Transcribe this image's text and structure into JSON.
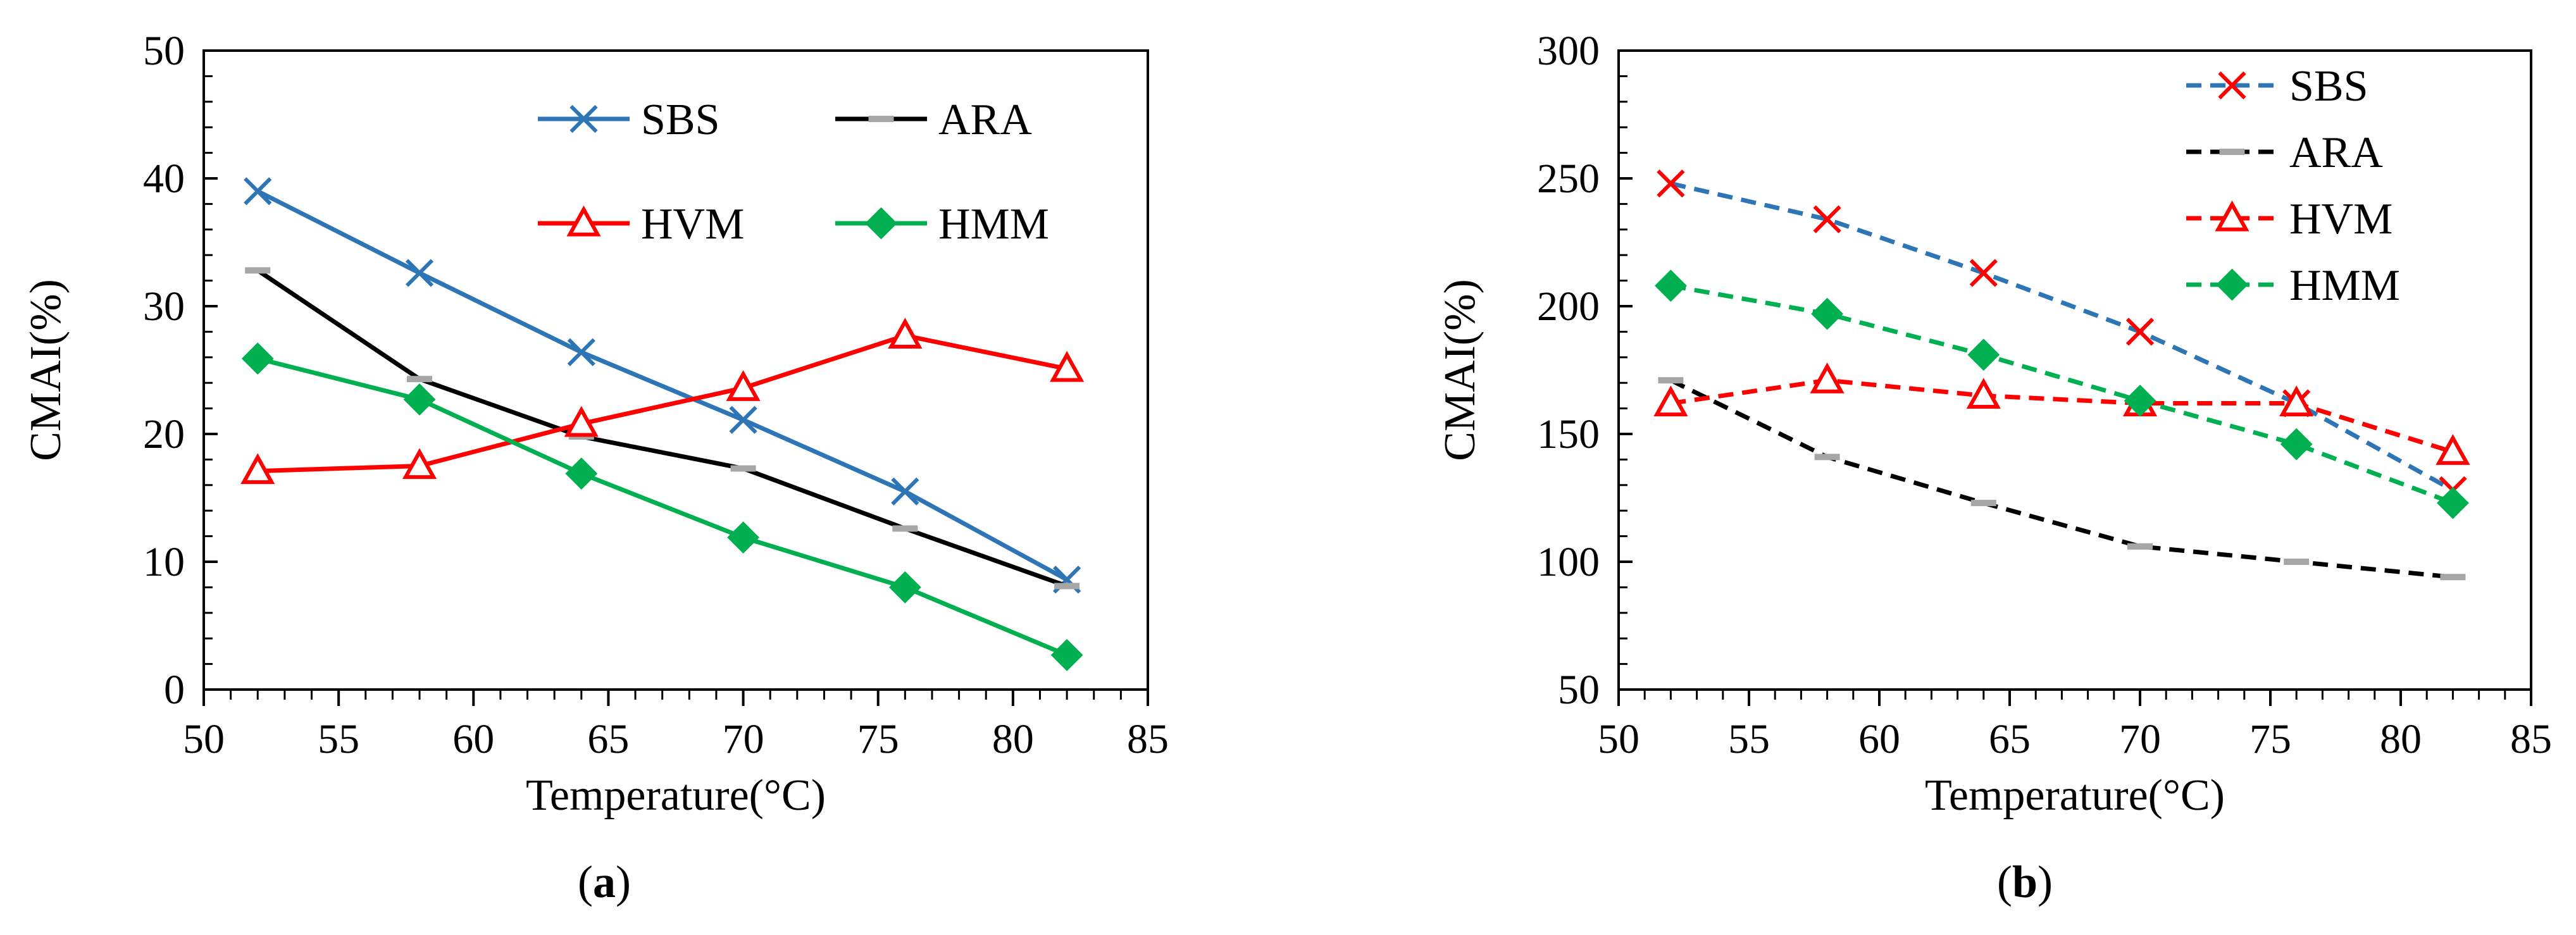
{
  "chart_data": [
    {
      "panel": "a",
      "caption_parts": [
        "(",
        "a",
        ")"
      ],
      "type": "line",
      "xlabel": "Temperature(°C)",
      "ylabel": "CMAI(%)",
      "xlim": [
        50,
        85
      ],
      "ylim": [
        0,
        50
      ],
      "xticks": [
        50,
        55,
        60,
        65,
        70,
        75,
        80,
        85
      ],
      "yticks": [
        0,
        10,
        20,
        30,
        40,
        50
      ],
      "legend_columns": 2,
      "x": [
        52,
        58,
        64,
        70,
        76,
        82
      ],
      "series": [
        {
          "name": "SBS",
          "values": [
            39,
            32.6,
            26.4,
            21.1,
            15.5,
            8.6
          ],
          "color": "#2e75b6",
          "marker": "x",
          "dashed": false
        },
        {
          "name": "ARA",
          "values": [
            32.8,
            24.3,
            19.8,
            17.3,
            12.6,
            8.1
          ],
          "color": "#000000",
          "marker": "dash",
          "dashed": false
        },
        {
          "name": "HVM",
          "values": [
            17.1,
            17.5,
            20.8,
            23.6,
            27.7,
            25.1
          ],
          "color": "#ff0000",
          "marker": "triangle",
          "dashed": false
        },
        {
          "name": "HMM",
          "values": [
            25.9,
            22.7,
            16.9,
            11.9,
            8.0,
            2.7
          ],
          "color": "#00b050",
          "marker": "diamond",
          "dashed": false
        }
      ]
    },
    {
      "panel": "b",
      "caption_parts": [
        "(",
        "b",
        ")"
      ],
      "type": "line",
      "xlabel": "Temperature(°C)",
      "ylabel": "CMAI(%)",
      "xlim": [
        50,
        85
      ],
      "ylim": [
        50,
        300
      ],
      "xticks": [
        50,
        55,
        60,
        65,
        70,
        75,
        80,
        85
      ],
      "yticks": [
        50,
        100,
        150,
        200,
        250,
        300
      ],
      "legend_columns": 1,
      "x": [
        52,
        58,
        64,
        70,
        76,
        82
      ],
      "series": [
        {
          "name": "SBS",
          "values": [
            248,
            234,
            213,
            190,
            162,
            128
          ],
          "color": "#2e75b6",
          "marker": "x",
          "marker_color": "#ff0000",
          "dashed": true
        },
        {
          "name": "ARA",
          "values": [
            171,
            141,
            123,
            106,
            100,
            94
          ],
          "color": "#000000",
          "marker": "dash",
          "dashed": true
        },
        {
          "name": "HVM",
          "values": [
            162,
            171,
            165,
            162,
            162,
            143
          ],
          "color": "#ff0000",
          "marker": "triangle",
          "dashed": true
        },
        {
          "name": "HMM",
          "values": [
            208,
            197,
            181,
            163,
            146,
            123
          ],
          "color": "#00b050",
          "marker": "diamond",
          "dashed": true
        }
      ]
    }
  ]
}
